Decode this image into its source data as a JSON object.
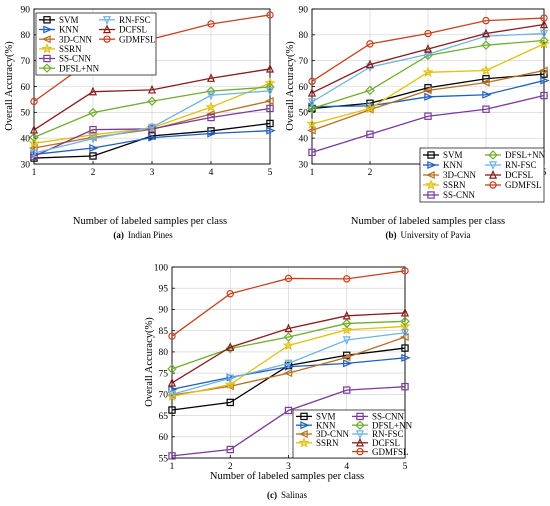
{
  "colors": {
    "SVM": "#000000",
    "KNN": "#1f5fbf",
    "3D-CNN": "#b86f1e",
    "SSRN": "#e3c012",
    "SS-CNN": "#7a3a9a",
    "DFSL+NN": "#6fae2e",
    "RN-FSC": "#6fb3e6",
    "DCFSL": "#8b1a1a",
    "GDMFSL": "#c8401c"
  },
  "markers": {
    "SVM": "square",
    "KNN": "diamond-right",
    "3D-CNN": "triangle-left",
    "SSRN": "star",
    "SS-CNN": "square",
    "DFSL+NN": "diamond",
    "RN-FSC": "triangle-down",
    "DCFSL": "triangle-up",
    "GDMFSL": "circle"
  },
  "chart_data": [
    {
      "type": "line",
      "caption_label": "(a)",
      "caption_text": "Indian Pines",
      "xlabel": "Number of labeled samples per class",
      "ylabel": "Overall Accuracy(%)",
      "x": [
        1,
        2,
        3,
        4,
        5
      ],
      "xlim": [
        1,
        5
      ],
      "ylim": [
        30,
        90
      ],
      "yticks": [
        30,
        40,
        50,
        60,
        70,
        80,
        90
      ],
      "grid": true,
      "legend": {
        "placement": "top-left",
        "columns": 2,
        "order": [
          "SVM",
          "RN-FSC",
          "KNN",
          "DCFSL",
          "3D-CNN",
          "GDMFSL",
          "SSRN",
          "",
          "SS-CNN",
          "",
          "DFSL+NN",
          ""
        ]
      },
      "series": [
        {
          "name": "SVM",
          "values": [
            32.3,
            33.1,
            40.9,
            42.8,
            45.7
          ]
        },
        {
          "name": "KNN",
          "values": [
            33.7,
            36.2,
            40.2,
            41.8,
            42.9
          ]
        },
        {
          "name": "3D-CNN",
          "values": [
            36.2,
            40.3,
            43.4,
            49.3,
            54.4
          ]
        },
        {
          "name": "SSRN",
          "values": [
            38.0,
            41.3,
            44.0,
            52.0,
            61.3
          ]
        },
        {
          "name": "SS-CNN",
          "values": [
            33.0,
            43.3,
            43.6,
            48.0,
            51.5
          ]
        },
        {
          "name": "DFSL+NN",
          "values": [
            40.3,
            49.9,
            54.3,
            58.2,
            59.8
          ]
        },
        {
          "name": "RN-FSC",
          "values": [
            34.2,
            39.8,
            44.2,
            56.6,
            58.3
          ]
        },
        {
          "name": "DCFSL",
          "values": [
            43.2,
            58.0,
            58.7,
            63.2,
            66.8
          ]
        },
        {
          "name": "GDMFSL",
          "values": [
            54.2,
            70.6,
            78.4,
            84.2,
            87.7
          ]
        }
      ]
    },
    {
      "type": "line",
      "caption_label": "(b)",
      "caption_text": "University of Pavia",
      "xlabel": "Number of labeled samples per class",
      "ylabel": "Overall Accuracy(%)",
      "x": [
        1,
        2,
        3,
        4,
        5
      ],
      "xlim": [
        1,
        5
      ],
      "ylim": [
        30,
        90
      ],
      "yticks": [
        30,
        40,
        50,
        60,
        70,
        80,
        90
      ],
      "grid": true,
      "legend": {
        "placement": "bottom-right",
        "columns": 2,
        "order": [
          "SVM",
          "DFSL+NN",
          "KNN",
          "RN-FSC",
          "3D-CNN",
          "DCFSL",
          "SSRN",
          "GDMFSL",
          "SS-CNN",
          ""
        ]
      },
      "series": [
        {
          "name": "SVM",
          "values": [
            51.5,
            53.5,
            59.5,
            63.0,
            64.8
          ]
        },
        {
          "name": "KNN",
          "values": [
            52.2,
            52.5,
            56.0,
            56.8,
            62.3
          ]
        },
        {
          "name": "3D-CNN",
          "values": [
            43.0,
            51.0,
            58.5,
            61.5,
            66.2
          ]
        },
        {
          "name": "SSRN",
          "values": [
            45.5,
            51.5,
            65.5,
            66.2,
            76.5
          ]
        },
        {
          "name": "SS-CNN",
          "values": [
            34.5,
            41.5,
            48.5,
            51.2,
            56.5
          ]
        },
        {
          "name": "DFSL+NN",
          "values": [
            51.5,
            58.5,
            72.0,
            76.0,
            77.8
          ]
        },
        {
          "name": "RN-FSC",
          "values": [
            54.0,
            67.5,
            72.5,
            79.5,
            80.5
          ]
        },
        {
          "name": "DCFSL",
          "values": [
            57.5,
            68.5,
            74.5,
            80.5,
            84.0
          ]
        },
        {
          "name": "GDMFSL",
          "values": [
            62.0,
            76.5,
            80.5,
            85.5,
            86.5
          ]
        }
      ]
    },
    {
      "type": "line",
      "caption_label": "(c)",
      "caption_text": "Salinas",
      "xlabel": "Number of labeled samples per class",
      "ylabel": "Overall Accuracy(%)",
      "x": [
        1,
        2,
        3,
        4,
        5
      ],
      "xlim": [
        1,
        5
      ],
      "ylim": [
        55,
        100
      ],
      "yticks": [
        55,
        60,
        65,
        70,
        75,
        80,
        85,
        90,
        95,
        100
      ],
      "grid": true,
      "legend": {
        "placement": "bottom-right",
        "columns": 2,
        "order": [
          "SVM",
          "SS-CNN",
          "KNN",
          "DFSL+NN",
          "3D-CNN",
          "RN-FSC",
          "SSRN",
          "DCFSL",
          "",
          "GDMFSL"
        ]
      },
      "series": [
        {
          "name": "SVM",
          "values": [
            66.3,
            68.1,
            76.8,
            79.2,
            80.9
          ]
        },
        {
          "name": "KNN",
          "values": [
            71.2,
            74.0,
            76.5,
            77.3,
            78.6
          ]
        },
        {
          "name": "3D-CNN",
          "values": [
            69.8,
            71.9,
            75.0,
            78.7,
            83.5
          ]
        },
        {
          "name": "SSRN",
          "values": [
            69.5,
            72.3,
            81.5,
            85.2,
            86.0
          ]
        },
        {
          "name": "SS-CNN",
          "values": [
            55.5,
            57.0,
            66.2,
            71.0,
            71.8
          ]
        },
        {
          "name": "DFSL+NN",
          "values": [
            76.0,
            80.8,
            83.5,
            86.7,
            87.2
          ]
        },
        {
          "name": "RN-FSC",
          "values": [
            70.0,
            73.8,
            77.3,
            82.8,
            84.5
          ]
        },
        {
          "name": "DCFSL",
          "values": [
            72.7,
            81.1,
            85.5,
            88.5,
            89.2
          ]
        },
        {
          "name": "GDMFSL",
          "values": [
            83.7,
            93.7,
            97.3,
            97.2,
            99.1
          ]
        }
      ]
    }
  ]
}
